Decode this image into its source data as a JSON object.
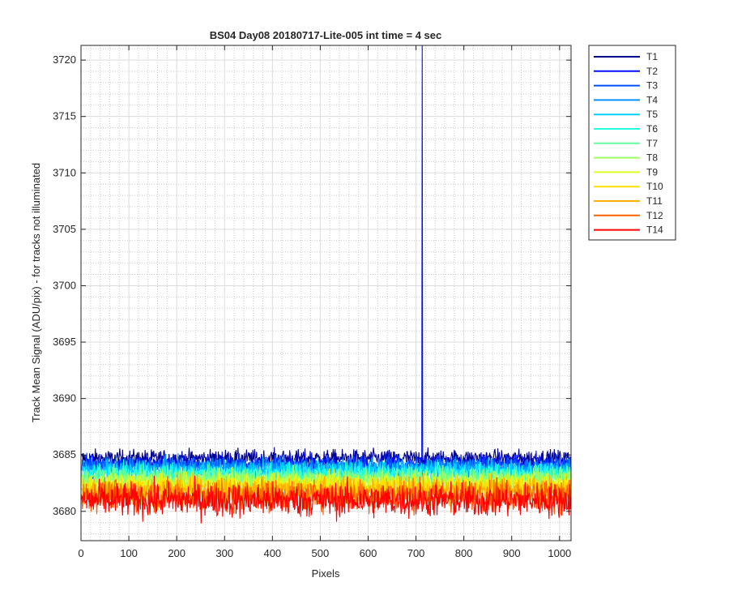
{
  "chart_data": {
    "type": "line",
    "title": "BS04 Day08 20180717-Lite-005 int time = 4 sec",
    "xlabel": "Pixels",
    "ylabel": "Track Mean Signal (ADU/pix) - for tracks not illuminated",
    "xlim": [
      0,
      1024
    ],
    "ylim": [
      3677.4,
      3721.3
    ],
    "x_ticks": [
      0,
      100,
      200,
      300,
      400,
      500,
      600,
      700,
      800,
      900,
      1000
    ],
    "y_ticks": [
      3680,
      3685,
      3690,
      3695,
      3700,
      3705,
      3710,
      3715,
      3720
    ],
    "grid": "major and minor",
    "legend_location": "outside top-right",
    "series": [
      {
        "name": "T1",
        "color": "#00008f",
        "level": 3684.7,
        "noise": 0.55
      },
      {
        "name": "T2",
        "color": "#0010ff",
        "level": 3684.2,
        "noise": 0.6,
        "spike": {
          "x": 713,
          "y": 3721.3
        }
      },
      {
        "name": "T3",
        "color": "#0050ff",
        "level": 3684.0,
        "noise": 0.6
      },
      {
        "name": "T4",
        "color": "#0090ff",
        "level": 3683.8,
        "noise": 0.65
      },
      {
        "name": "T5",
        "color": "#00d0ff",
        "level": 3683.6,
        "noise": 0.65
      },
      {
        "name": "T6",
        "color": "#20ffdf",
        "level": 3683.3,
        "noise": 0.7
      },
      {
        "name": "T7",
        "color": "#60ff9f",
        "level": 3683.0,
        "noise": 0.7
      },
      {
        "name": "T8",
        "color": "#9fff60",
        "level": 3682.7,
        "noise": 0.75
      },
      {
        "name": "T9",
        "color": "#dfff20",
        "level": 3682.4,
        "noise": 0.75
      },
      {
        "name": "T10",
        "color": "#ffdf00",
        "level": 3682.1,
        "noise": 0.8
      },
      {
        "name": "T11",
        "color": "#ffb000",
        "level": 3681.8,
        "noise": 0.9
      },
      {
        "name": "T12",
        "color": "#ff6000",
        "level": 3681.4,
        "noise": 1.0
      },
      {
        "name": "T14",
        "color": "#ff0000",
        "level": 3681.0,
        "noise": 1.1
      }
    ]
  }
}
